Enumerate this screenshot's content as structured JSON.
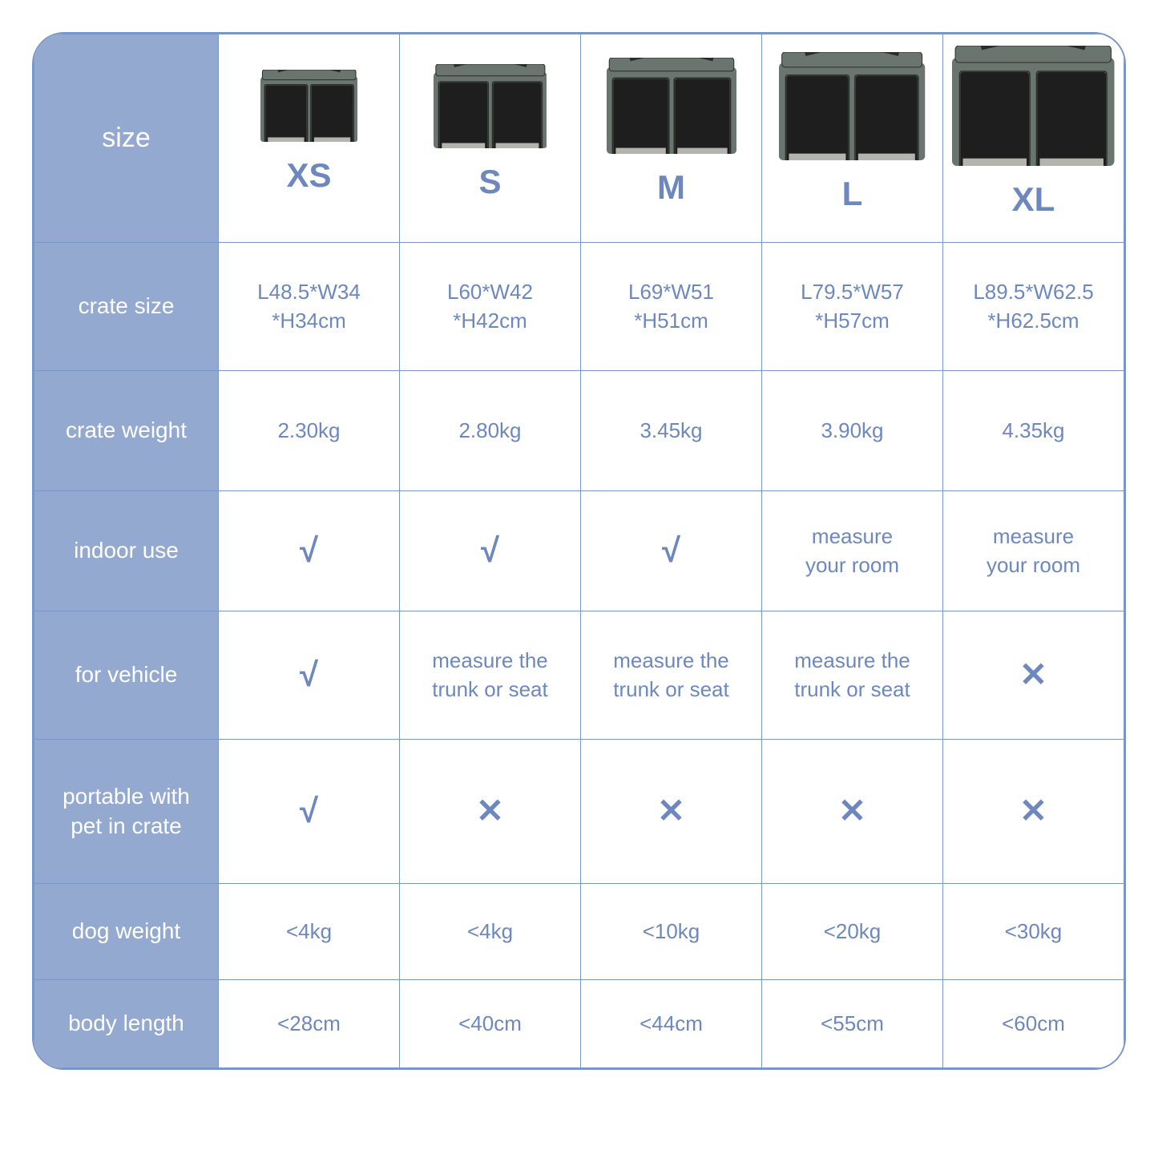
{
  "colors": {
    "border": "#7a95c7",
    "header_bg": "#94a9d0",
    "header_text": "#ffffff",
    "cell_text": "#6d88bf",
    "crate_fabric": "#6b7570",
    "crate_mesh": "#1e1e1e",
    "crate_trim": "#2b2b2b"
  },
  "typography": {
    "row_header_fontsize": 28,
    "size_label_fontsize": 42,
    "cell_fontsize": 26,
    "symbol_fontsize": 42
  },
  "table": {
    "header_label": "size",
    "columns": [
      "XS",
      "S",
      "M",
      "L",
      "XL"
    ],
    "crate_img_heights": [
      90,
      105,
      120,
      135,
      150
    ],
    "rows": [
      {
        "key": "crate_size",
        "label": "crate size",
        "cells": [
          {
            "type": "text",
            "value": "L48.5*W34\n*H34cm"
          },
          {
            "type": "text",
            "value": "L60*W42\n*H42cm"
          },
          {
            "type": "text",
            "value": "L69*W51\n*H51cm"
          },
          {
            "type": "text",
            "value": "L79.5*W57\n*H57cm"
          },
          {
            "type": "text",
            "value": "L89.5*W62.5\n*H62.5cm"
          }
        ]
      },
      {
        "key": "crate_weight",
        "label": "crate weight",
        "cells": [
          {
            "type": "text",
            "value": "2.30kg"
          },
          {
            "type": "text",
            "value": "2.80kg"
          },
          {
            "type": "text",
            "value": "3.45kg"
          },
          {
            "type": "text",
            "value": "3.90kg"
          },
          {
            "type": "text",
            "value": "4.35kg"
          }
        ]
      },
      {
        "key": "indoor",
        "label": "indoor use",
        "cells": [
          {
            "type": "check"
          },
          {
            "type": "check"
          },
          {
            "type": "check"
          },
          {
            "type": "text",
            "value": "measure\nyour room"
          },
          {
            "type": "text",
            "value": "measure\nyour room"
          }
        ]
      },
      {
        "key": "vehicle",
        "label": "for vehicle",
        "cells": [
          {
            "type": "check"
          },
          {
            "type": "text",
            "value": "measure the\ntrunk or seat"
          },
          {
            "type": "text",
            "value": "measure the\ntrunk or seat"
          },
          {
            "type": "text",
            "value": "measure the\ntrunk or seat"
          },
          {
            "type": "cross"
          }
        ]
      },
      {
        "key": "portable",
        "label": "portable with\npet in crate",
        "cells": [
          {
            "type": "check"
          },
          {
            "type": "cross"
          },
          {
            "type": "cross"
          },
          {
            "type": "cross"
          },
          {
            "type": "cross"
          }
        ]
      },
      {
        "key": "dog_weight",
        "label": "dog weight",
        "cells": [
          {
            "type": "text",
            "value": "<4kg"
          },
          {
            "type": "text",
            "value": "<4kg"
          },
          {
            "type": "text",
            "value": "<10kg"
          },
          {
            "type": "text",
            "value": "<20kg"
          },
          {
            "type": "text",
            "value": "<30kg"
          }
        ]
      },
      {
        "key": "body_length",
        "label": "body length",
        "cells": [
          {
            "type": "text",
            "value": "<28cm"
          },
          {
            "type": "text",
            "value": "<40cm"
          },
          {
            "type": "text",
            "value": "<44cm"
          },
          {
            "type": "text",
            "value": "<55cm"
          },
          {
            "type": "text",
            "value": "<60cm"
          }
        ]
      }
    ]
  }
}
